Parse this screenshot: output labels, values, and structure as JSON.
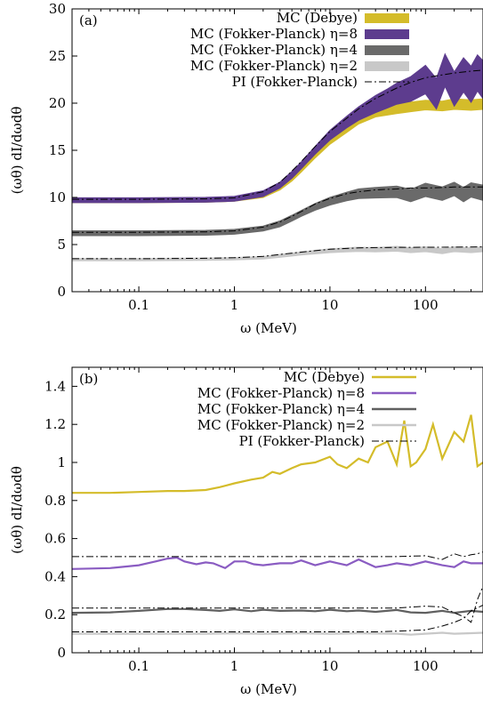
{
  "chart_data": [
    {
      "type": "line",
      "panel": "(a)",
      "xlabel": "ω (MeV)",
      "ylabel": "(ωθ) dI/dωdθ",
      "xscale": "log",
      "xlim": [
        0.02,
        400
      ],
      "ylim": [
        0,
        30
      ],
      "xticks": [
        0.1,
        1,
        10,
        100
      ],
      "xtick_labels": [
        "0.1",
        "1",
        "10",
        "100"
      ],
      "yticks": [
        0,
        5,
        10,
        15,
        20,
        25,
        30
      ],
      "ytick_labels": [
        "0",
        "5",
        "10",
        "15",
        "20",
        "25",
        "30"
      ],
      "legend_position": "top-right",
      "series": [
        {
          "name": "MC (Debye)",
          "style": "band",
          "color": "#d4bc2a",
          "x": [
            0.02,
            0.1,
            0.5,
            1,
            2,
            3,
            4,
            5,
            7,
            10,
            15,
            20,
            30,
            50,
            70,
            100,
            150,
            200,
            300,
            400
          ],
          "y": [
            9.6,
            9.6,
            9.65,
            9.75,
            10.2,
            11.0,
            12.0,
            13.0,
            14.5,
            16.0,
            17.3,
            18.2,
            19.0,
            19.4,
            19.6,
            19.8,
            19.7,
            19.9,
            19.8,
            19.9
          ],
          "spread": [
            0.15,
            0.15,
            0.15,
            0.15,
            0.2,
            0.2,
            0.25,
            0.3,
            0.3,
            0.35,
            0.4,
            0.4,
            0.45,
            0.5,
            0.5,
            0.5,
            0.5,
            0.55,
            0.55,
            0.55
          ]
        },
        {
          "name": "MC (Fokker-Planck) η=8",
          "style": "band",
          "color": "#5d3c8e",
          "x": [
            0.02,
            0.1,
            0.5,
            1,
            2,
            3,
            4,
            5,
            7,
            10,
            15,
            20,
            30,
            40,
            50,
            70,
            100,
            130,
            160,
            200,
            250,
            300,
            350,
            400
          ],
          "y": [
            9.7,
            9.7,
            9.75,
            9.85,
            10.4,
            11.3,
            12.4,
            13.4,
            15.0,
            16.6,
            18.0,
            18.9,
            19.9,
            20.5,
            21.0,
            21.5,
            22.5,
            21.0,
            23.5,
            21.5,
            23.0,
            22.0,
            23.2,
            22.5
          ],
          "spread": [
            0.25,
            0.25,
            0.25,
            0.25,
            0.3,
            0.3,
            0.35,
            0.35,
            0.4,
            0.5,
            0.6,
            0.7,
            0.9,
            1.0,
            1.1,
            1.3,
            1.5,
            1.6,
            1.7,
            1.8,
            1.8,
            1.9,
            1.9,
            2.0
          ]
        },
        {
          "name": "MC (Fokker-Planck) η=4",
          "style": "band",
          "color": "#6a6a6a",
          "x": [
            0.02,
            0.1,
            0.5,
            1,
            2,
            3,
            4,
            5,
            7,
            10,
            15,
            20,
            30,
            50,
            70,
            100,
            150,
            200,
            250,
            300,
            400
          ],
          "y": [
            6.2,
            6.2,
            6.25,
            6.35,
            6.7,
            7.2,
            7.8,
            8.3,
            9.0,
            9.6,
            10.1,
            10.4,
            10.5,
            10.6,
            10.2,
            10.8,
            10.4,
            10.9,
            10.3,
            10.8,
            10.5
          ],
          "spread": [
            0.25,
            0.25,
            0.25,
            0.25,
            0.25,
            0.3,
            0.3,
            0.3,
            0.35,
            0.4,
            0.45,
            0.5,
            0.55,
            0.6,
            0.65,
            0.7,
            0.7,
            0.7,
            0.75,
            0.75,
            0.8
          ]
        },
        {
          "name": "MC (Fokker-Planck) η=2",
          "style": "band",
          "color": "#c8c8c8",
          "x": [
            0.02,
            0.1,
            0.5,
            1,
            2,
            3,
            5,
            7,
            10,
            20,
            30,
            50,
            70,
            100,
            150,
            200,
            300,
            400
          ],
          "y": [
            3.4,
            3.4,
            3.45,
            3.5,
            3.6,
            3.8,
            4.05,
            4.2,
            4.35,
            4.5,
            4.45,
            4.55,
            4.4,
            4.5,
            4.3,
            4.5,
            4.4,
            4.5
          ],
          "spread": [
            0.12,
            0.12,
            0.12,
            0.12,
            0.12,
            0.15,
            0.15,
            0.18,
            0.2,
            0.22,
            0.22,
            0.25,
            0.25,
            0.25,
            0.25,
            0.25,
            0.25,
            0.25
          ]
        },
        {
          "name": "PI (Fokker-Planck)",
          "style": "dashdot",
          "color": "#000000",
          "curves": [
            {
              "x": [
                0.02,
                0.1,
                0.5,
                1,
                2,
                3,
                4,
                5,
                7,
                10,
                15,
                20,
                30,
                50,
                70,
                100,
                150,
                200,
                300,
                400
              ],
              "y": [
                9.8,
                9.8,
                9.85,
                9.95,
                10.6,
                11.6,
                12.8,
                13.8,
                15.4,
                17.0,
                18.4,
                19.4,
                20.5,
                21.6,
                22.2,
                22.7,
                23.0,
                23.2,
                23.4,
                23.5
              ]
            },
            {
              "x": [
                0.02,
                0.1,
                0.5,
                1,
                2,
                3,
                4,
                5,
                7,
                10,
                15,
                20,
                30,
                50,
                70,
                100,
                150,
                200,
                300,
                400
              ],
              "y": [
                6.3,
                6.3,
                6.35,
                6.45,
                6.85,
                7.4,
                8.0,
                8.5,
                9.3,
                9.9,
                10.4,
                10.6,
                10.8,
                10.9,
                11.0,
                11.0,
                11.05,
                11.1,
                11.1,
                11.1
              ]
            },
            {
              "x": [
                0.02,
                0.1,
                0.5,
                1,
                2,
                3,
                5,
                7,
                10,
                20,
                30,
                50,
                100,
                200,
                400
              ],
              "y": [
                3.5,
                3.5,
                3.55,
                3.6,
                3.75,
                3.95,
                4.2,
                4.35,
                4.5,
                4.65,
                4.68,
                4.7,
                4.72,
                4.73,
                4.75
              ]
            }
          ]
        }
      ]
    },
    {
      "type": "line",
      "panel": "(b)",
      "xlabel": "ω (MeV)",
      "ylabel": "(ωθ) dI/dωdθ",
      "xscale": "log",
      "xlim": [
        0.02,
        400
      ],
      "ylim": [
        0,
        1.5
      ],
      "xticks": [
        0.1,
        1,
        10,
        100
      ],
      "xtick_labels": [
        "0.1",
        "1",
        "10",
        "100"
      ],
      "yticks": [
        0,
        0.2,
        0.4,
        0.6,
        0.8,
        1,
        1.2,
        1.4
      ],
      "ytick_labels": [
        "0",
        "0.2",
        "0.4",
        "0.6",
        "0.8",
        "1",
        "1.2",
        "1.4"
      ],
      "legend_position": "top-right",
      "series": [
        {
          "name": "MC (Debye)",
          "style": "solid",
          "color": "#d4bc2a",
          "x": [
            0.02,
            0.05,
            0.1,
            0.2,
            0.3,
            0.5,
            0.7,
            1,
            1.5,
            2,
            2.5,
            3,
            4,
            5,
            7,
            10,
            12,
            15,
            20,
            25,
            30,
            40,
            50,
            60,
            70,
            80,
            100,
            120,
            150,
            200,
            250,
            300,
            350,
            400
          ],
          "y": [
            0.84,
            0.84,
            0.845,
            0.85,
            0.85,
            0.855,
            0.87,
            0.89,
            0.91,
            0.92,
            0.95,
            0.94,
            0.97,
            0.99,
            1.0,
            1.03,
            0.99,
            0.97,
            1.02,
            1.0,
            1.08,
            1.11,
            0.99,
            1.22,
            0.98,
            1.0,
            1.07,
            1.2,
            1.02,
            1.16,
            1.11,
            1.25,
            0.98,
            1.0
          ]
        },
        {
          "name": "MC (Fokker-Planck) η=8",
          "style": "solid",
          "color": "#8a5cc2",
          "x": [
            0.02,
            0.05,
            0.1,
            0.15,
            0.2,
            0.25,
            0.3,
            0.4,
            0.5,
            0.6,
            0.8,
            1,
            1.3,
            1.6,
            2,
            3,
            4,
            5,
            7,
            10,
            15,
            20,
            30,
            40,
            50,
            70,
            100,
            150,
            200,
            250,
            300,
            400
          ],
          "y": [
            0.44,
            0.445,
            0.46,
            0.48,
            0.495,
            0.5,
            0.48,
            0.465,
            0.475,
            0.47,
            0.445,
            0.48,
            0.48,
            0.465,
            0.46,
            0.47,
            0.47,
            0.485,
            0.46,
            0.48,
            0.46,
            0.49,
            0.45,
            0.46,
            0.47,
            0.46,
            0.48,
            0.46,
            0.45,
            0.48,
            0.47,
            0.47
          ]
        },
        {
          "name": "MC (Fokker-Planck) η=4",
          "style": "solid",
          "color": "#606060",
          "x": [
            0.02,
            0.05,
            0.1,
            0.2,
            0.3,
            0.5,
            0.7,
            1,
            1.5,
            2,
            3,
            5,
            7,
            10,
            15,
            20,
            30,
            50,
            70,
            100,
            150,
            200,
            300,
            400
          ],
          "y": [
            0.21,
            0.212,
            0.22,
            0.23,
            0.23,
            0.225,
            0.22,
            0.228,
            0.218,
            0.226,
            0.22,
            0.222,
            0.218,
            0.226,
            0.218,
            0.222,
            0.215,
            0.225,
            0.212,
            0.21,
            0.22,
            0.21,
            0.22,
            0.215
          ]
        },
        {
          "name": "MC (Fokker-Planck) η=2",
          "style": "solid",
          "color": "#c8c8c8",
          "x": [
            0.02,
            0.1,
            0.5,
            1,
            2,
            5,
            10,
            20,
            50,
            70,
            100,
            150,
            200,
            300,
            400
          ],
          "y": [
            0.1,
            0.1,
            0.1,
            0.102,
            0.1,
            0.102,
            0.1,
            0.102,
            0.1,
            0.095,
            0.1,
            0.105,
            0.1,
            0.103,
            0.105
          ]
        },
        {
          "name": "PI (Fokker-Planck)",
          "style": "dashdot",
          "color": "#000000",
          "curves": [
            {
              "x": [
                0.02,
                1,
                10,
                50,
                100,
                150,
                200,
                250,
                300,
                350,
                400
              ],
              "y": [
                0.505,
                0.505,
                0.505,
                0.505,
                0.51,
                0.49,
                0.52,
                0.505,
                0.515,
                0.52,
                0.53
              ]
            },
            {
              "x": [
                0.02,
                1,
                10,
                50,
                100,
                150,
                200,
                250,
                300,
                350,
                400
              ],
              "y": [
                0.235,
                0.235,
                0.235,
                0.235,
                0.245,
                0.24,
                0.21,
                0.19,
                0.16,
                0.28,
                0.35
              ]
            },
            {
              "x": [
                0.02,
                1,
                10,
                30,
                60,
                100,
                150,
                200,
                250,
                300,
                400
              ],
              "y": [
                0.11,
                0.11,
                0.11,
                0.11,
                0.115,
                0.12,
                0.14,
                0.16,
                0.18,
                0.22,
                0.25
              ]
            }
          ]
        }
      ]
    }
  ]
}
